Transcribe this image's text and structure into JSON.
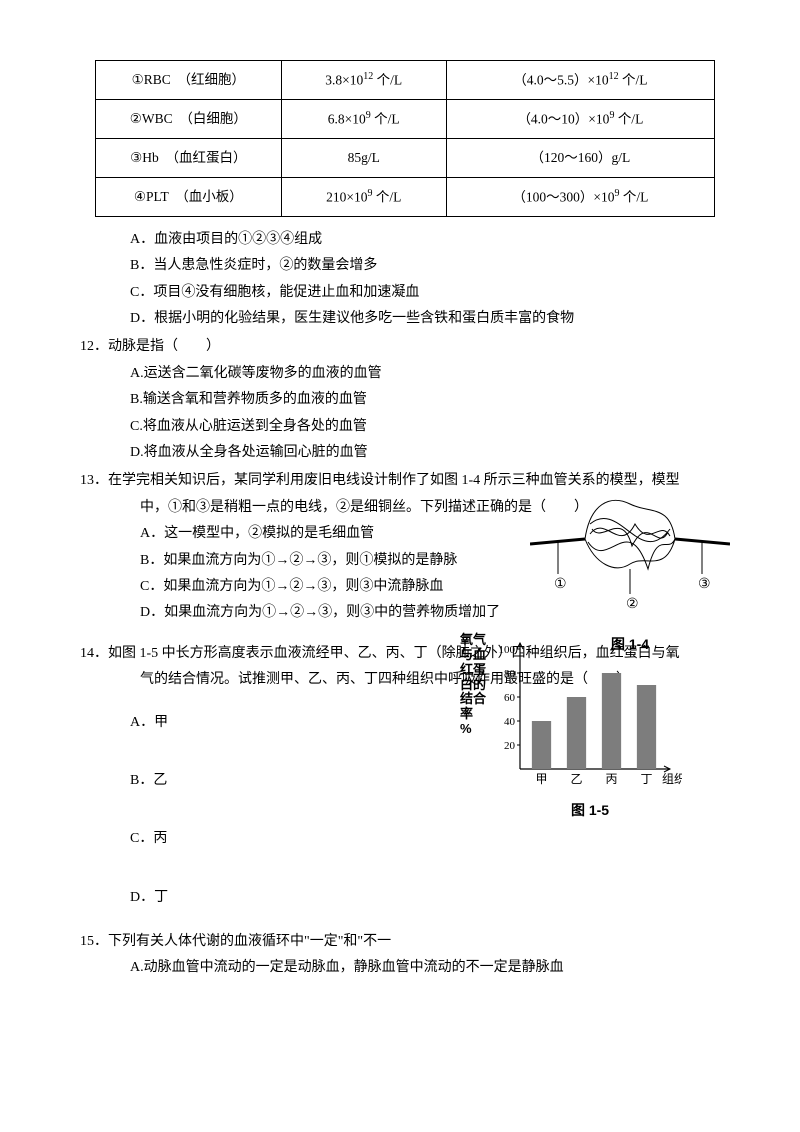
{
  "table": {
    "rows": [
      {
        "col1": "①RBC　（红细胞）",
        "col2": "3.8×10<sup>12</sup> 个/L",
        "col3": "（4.0～5.5）×10<sup>12</sup> 个/L"
      },
      {
        "col1": "②WBC　（白细胞）",
        "col2": "6.8×10<sup>9</sup> 个/L",
        "col3": "（4.0～10）×10<sup>9</sup> 个/L"
      },
      {
        "col1": "③Hb　（血红蛋白）",
        "col2": "85g/L",
        "col3": "（120～160）g/L"
      },
      {
        "col1": "④PLT　（血小板）",
        "col2": "210×10<sup>9</sup> 个/L",
        "col3": "（100～300）×10<sup>9</sup> 个/L"
      }
    ]
  },
  "q11opts": {
    "A": "A．血液由项目的①②③④组成",
    "B": "B．当人患急性炎症时，②的数量会增多",
    "C": "C．项目④没有细胞核，能促进止血和加速凝血",
    "D": "D．根据小明的化验结果，医生建议他多吃一些含铁和蛋白质丰富的食物"
  },
  "q12": {
    "stem": "12．动脉是指（　　）",
    "A": "A.运送含二氧化碳等废物多的血液的血管",
    "B": "B.输送含氧和营养物质多的血液的血管",
    "C": "C.将血液从心脏运送到全身各处的血管",
    "D": "D.将血液从全身各处运输回心脏的血管"
  },
  "q13": {
    "stem": "13．在学完相关知识后，某同学利用废旧电线设计制作了如图 1-4 所示三种血管关系的模型，模型",
    "stem2": "中，①和③是稍粗一点的电线，②是细铜丝。下列描述正确的是（　　）",
    "A": "A．这一模型中，②模拟的是毛细血管",
    "B": "B．如果血流方向为①→②→③，则①模拟的是静脉",
    "C": "C．如果血流方向为①→②→③，则③中流静脉血",
    "D": "D．如果血流方向为①→②→③，则③中的营养物质增加了",
    "fig_label": "图 1-4",
    "labels": {
      "l1": "①",
      "l2": "②",
      "l3": "③"
    }
  },
  "q14": {
    "stem": "14．如图 1-5 中长方形高度表示血液流经甲、乙、丙、丁（除肺之外）四种组织后，血红蛋白与氧",
    "stem2": "气的结合情况。试推测甲、乙、丙、丁四种组织中呼吸作用最旺盛的是（　　）",
    "A": "A．甲",
    "B": "B．乙",
    "C": "C．丙",
    "D": "D．丁",
    "fig_label": "图 1-5",
    "chart": {
      "type": "bar",
      "ylabel_lines": [
        "氧气",
        "与血",
        "红蛋",
        "白的",
        "结合",
        "率",
        "%"
      ],
      "xlabel": "组织",
      "categories": [
        "甲",
        "乙",
        "丙",
        "丁"
      ],
      "values": [
        40,
        60,
        80,
        70
      ],
      "ylim": [
        0,
        100
      ],
      "yticks": [
        20,
        40,
        60,
        80,
        100
      ],
      "bar_color": "#7d7d7d",
      "axis_color": "#000000",
      "bg": "#ffffff",
      "bar_width": 0.55
    }
  },
  "q15": {
    "stem": "15．下列有关人体代谢的血液循环中\"一定\"和\"不一",
    "A": "A.动脉血管中流动的一定是动脉血，静脉血管中流动的不一定是静脉血"
  }
}
